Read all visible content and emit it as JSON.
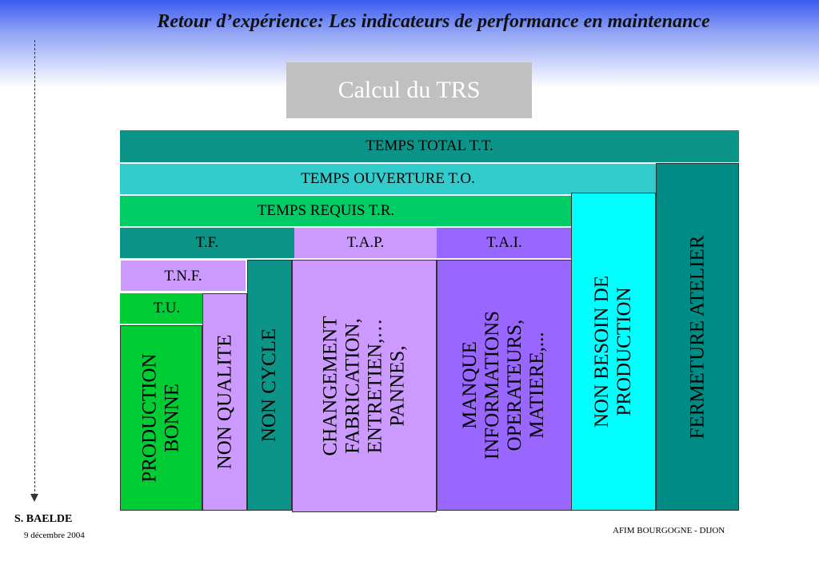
{
  "title": "Retour d’expérience: Les indicateurs de performance en maintenance",
  "calc_label": "Calcul du TRS",
  "rows": {
    "tt": "TEMPS TOTAL T.T.",
    "to": "TEMPS OUVERTURE  T.O.",
    "tr": "TEMPS REQUIS T.R.",
    "tf": "T.F.",
    "tap": "T.A.P.",
    "tai": "T.A.I.",
    "tnf": "T.N.F.",
    "tu": "T.U."
  },
  "columns": {
    "production_bonne": [
      "PRODUCTION",
      "BONNE"
    ],
    "non_qualite": [
      "NON QUALITE"
    ],
    "non_cycle": [
      "NON CYCLE"
    ],
    "changement": [
      "CHANGEMENT",
      "FABRICATION,",
      "ENTRETIEN,…",
      "PANNES,"
    ],
    "manque": [
      "MANQUE",
      "INFORMATIONS",
      "OPERATEURS,",
      "MATIERE,..."
    ],
    "non_besoin": [
      "NON BESOIN DE",
      "PRODUCTION"
    ],
    "fermeture": [
      "FERMETURE ATELIER"
    ]
  },
  "author": "S. BAELDE",
  "date": "9 décembre 2004",
  "footer": "AFIM BOURGOGNE - DIJON",
  "colors": {
    "teal": "#0d9488",
    "cyan_light": "#33cccc",
    "green": "#00cc66",
    "lavender": "#cc99ff",
    "purple": "#9966ff",
    "green_bright": "#00cc33",
    "cyan": "#00ffff",
    "dark_teal": "#008c84"
  }
}
